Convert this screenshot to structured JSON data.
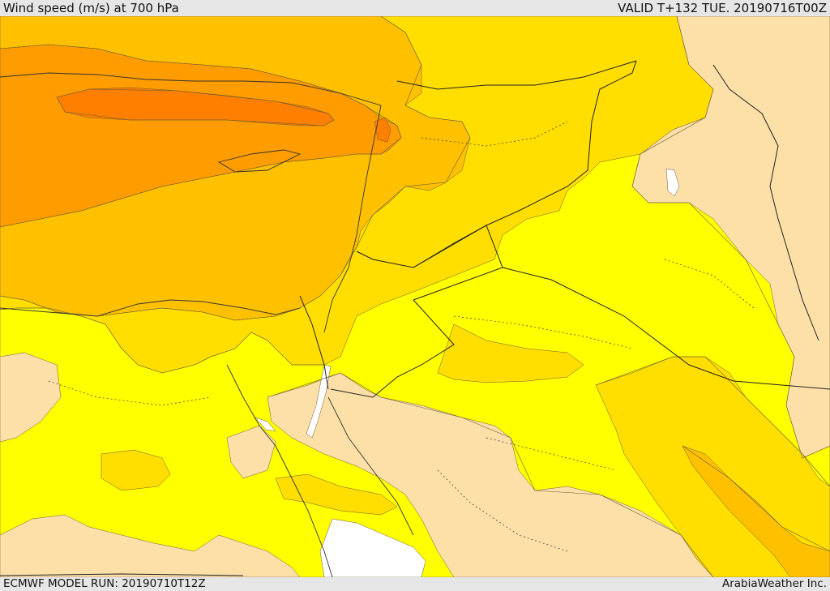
{
  "header": {
    "title": "Wind speed (m/s) at 700 hPa",
    "valid": "VALID T+132 TUE. 20190716T00Z"
  },
  "footer": {
    "model_run": "ECMWF MODEL RUN: 20190710T12Z",
    "credit": "ArabiaWeather Inc."
  },
  "colors": {
    "band_low": "#fde0a8",
    "band_1": "#ffff00",
    "band_2": "#ffde00",
    "band_3": "#ffc000",
    "band_4": "#ff9c00",
    "band_5": "#ff7f00",
    "no_data": "#ffffff",
    "frame": "#e6e6e6"
  }
}
